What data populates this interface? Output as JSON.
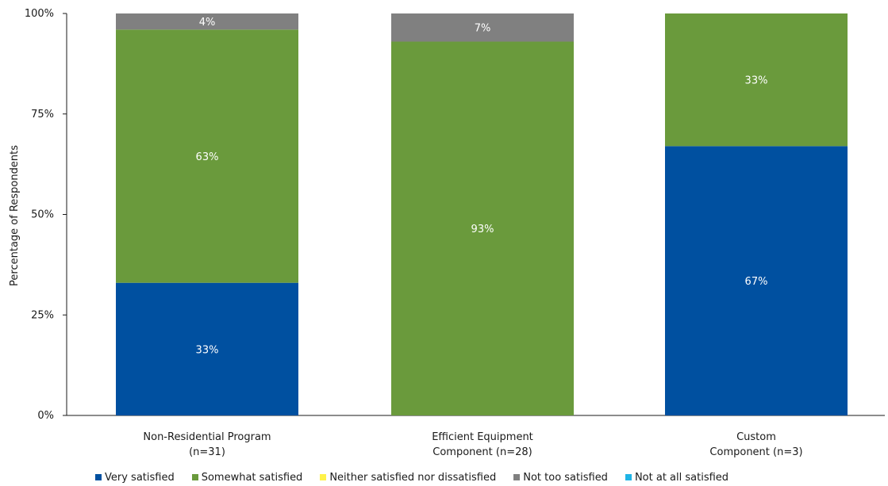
{
  "chart_data": {
    "type": "bar",
    "stacked": true,
    "categories": [
      [
        "Non-Residential Program",
        "(n=31)"
      ],
      [
        "Efficient Equipment",
        "Component (n=28)"
      ],
      [
        "Custom",
        "Component (n=3)"
      ]
    ],
    "series": [
      {
        "name": "Very satisfied",
        "color": "#0050A0",
        "values": [
          33,
          0,
          67
        ],
        "labels": [
          "33%",
          "",
          "67%"
        ]
      },
      {
        "name": "Somewhat satisfied",
        "color": "#6A9A3C",
        "values": [
          63,
          93,
          33
        ],
        "labels": [
          "63%",
          "93%",
          "33%"
        ]
      },
      {
        "name": "Neither satisfied nor dissatisfied",
        "color": "#FFF24A",
        "values": [
          0,
          0,
          0
        ],
        "labels": [
          "",
          "",
          ""
        ]
      },
      {
        "name": "Not too satisfied",
        "color": "#808080",
        "values": [
          4,
          7,
          0
        ],
        "labels": [
          "4%",
          "7%",
          ""
        ]
      },
      {
        "name": "Not at all satisfied",
        "color": "#1FB4E6",
        "values": [
          0,
          0,
          0
        ],
        "labels": [
          "",
          "",
          ""
        ]
      }
    ],
    "ylabel": "Percentage of Respondents",
    "ylim": [
      0,
      100
    ],
    "yticks": [
      "0%",
      "25%",
      "50%",
      "75%",
      "100%"
    ],
    "grid": false,
    "legend": "bottom"
  }
}
